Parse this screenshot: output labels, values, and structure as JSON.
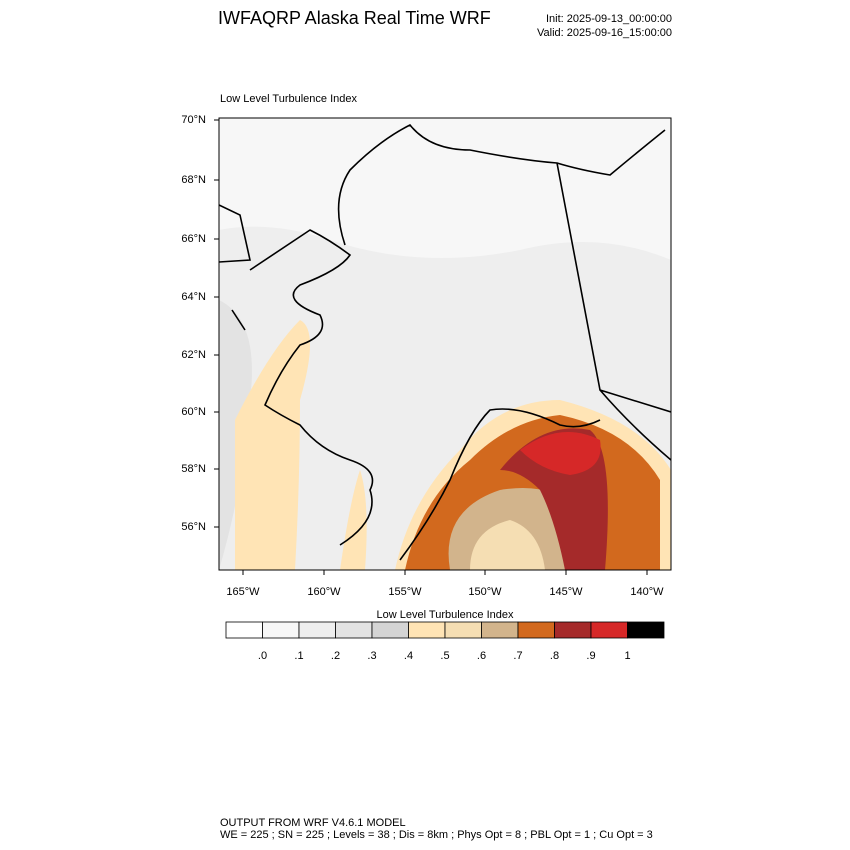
{
  "header": {
    "title": "IWFAQRP Alaska Real Time WRF",
    "init": "Init: 2025-09-13_00:00:00",
    "valid": "Valid: 2025-09-16_15:00:00"
  },
  "map": {
    "title": "Low Level Turbulence Index",
    "lat_labels": [
      "70°N",
      "68°N",
      "66°N",
      "64°N",
      "62°N",
      "60°N",
      "58°N",
      "56°N"
    ],
    "lon_labels": [
      "165°W",
      "160°W",
      "155°W",
      "150°W",
      "145°W",
      "140°W"
    ]
  },
  "colorbar": {
    "title": "Low Level Turbulence Index",
    "colors": [
      "#ffffff",
      "#f7f7f7",
      "#eeeeee",
      "#e3e3e3",
      "#d4d4d4",
      "#ffe4b5",
      "#f5deb3",
      "#d2b48c",
      "#d2691e",
      "#a52a2a",
      "#d62828",
      "#000000"
    ],
    "labels": [
      ".0",
      ".1",
      ".2",
      ".3",
      ".4",
      ".5",
      ".6",
      ".7",
      ".8",
      ".9",
      "1"
    ]
  },
  "footer": {
    "line1": "OUTPUT FROM WRF V4.6.1 MODEL",
    "line2": "WE = 225 ; SN = 225 ; Levels = 38 ; Dis = 8km ; Phys Opt = 8 ; PBL Opt = 1 ; Cu Opt = 3"
  }
}
